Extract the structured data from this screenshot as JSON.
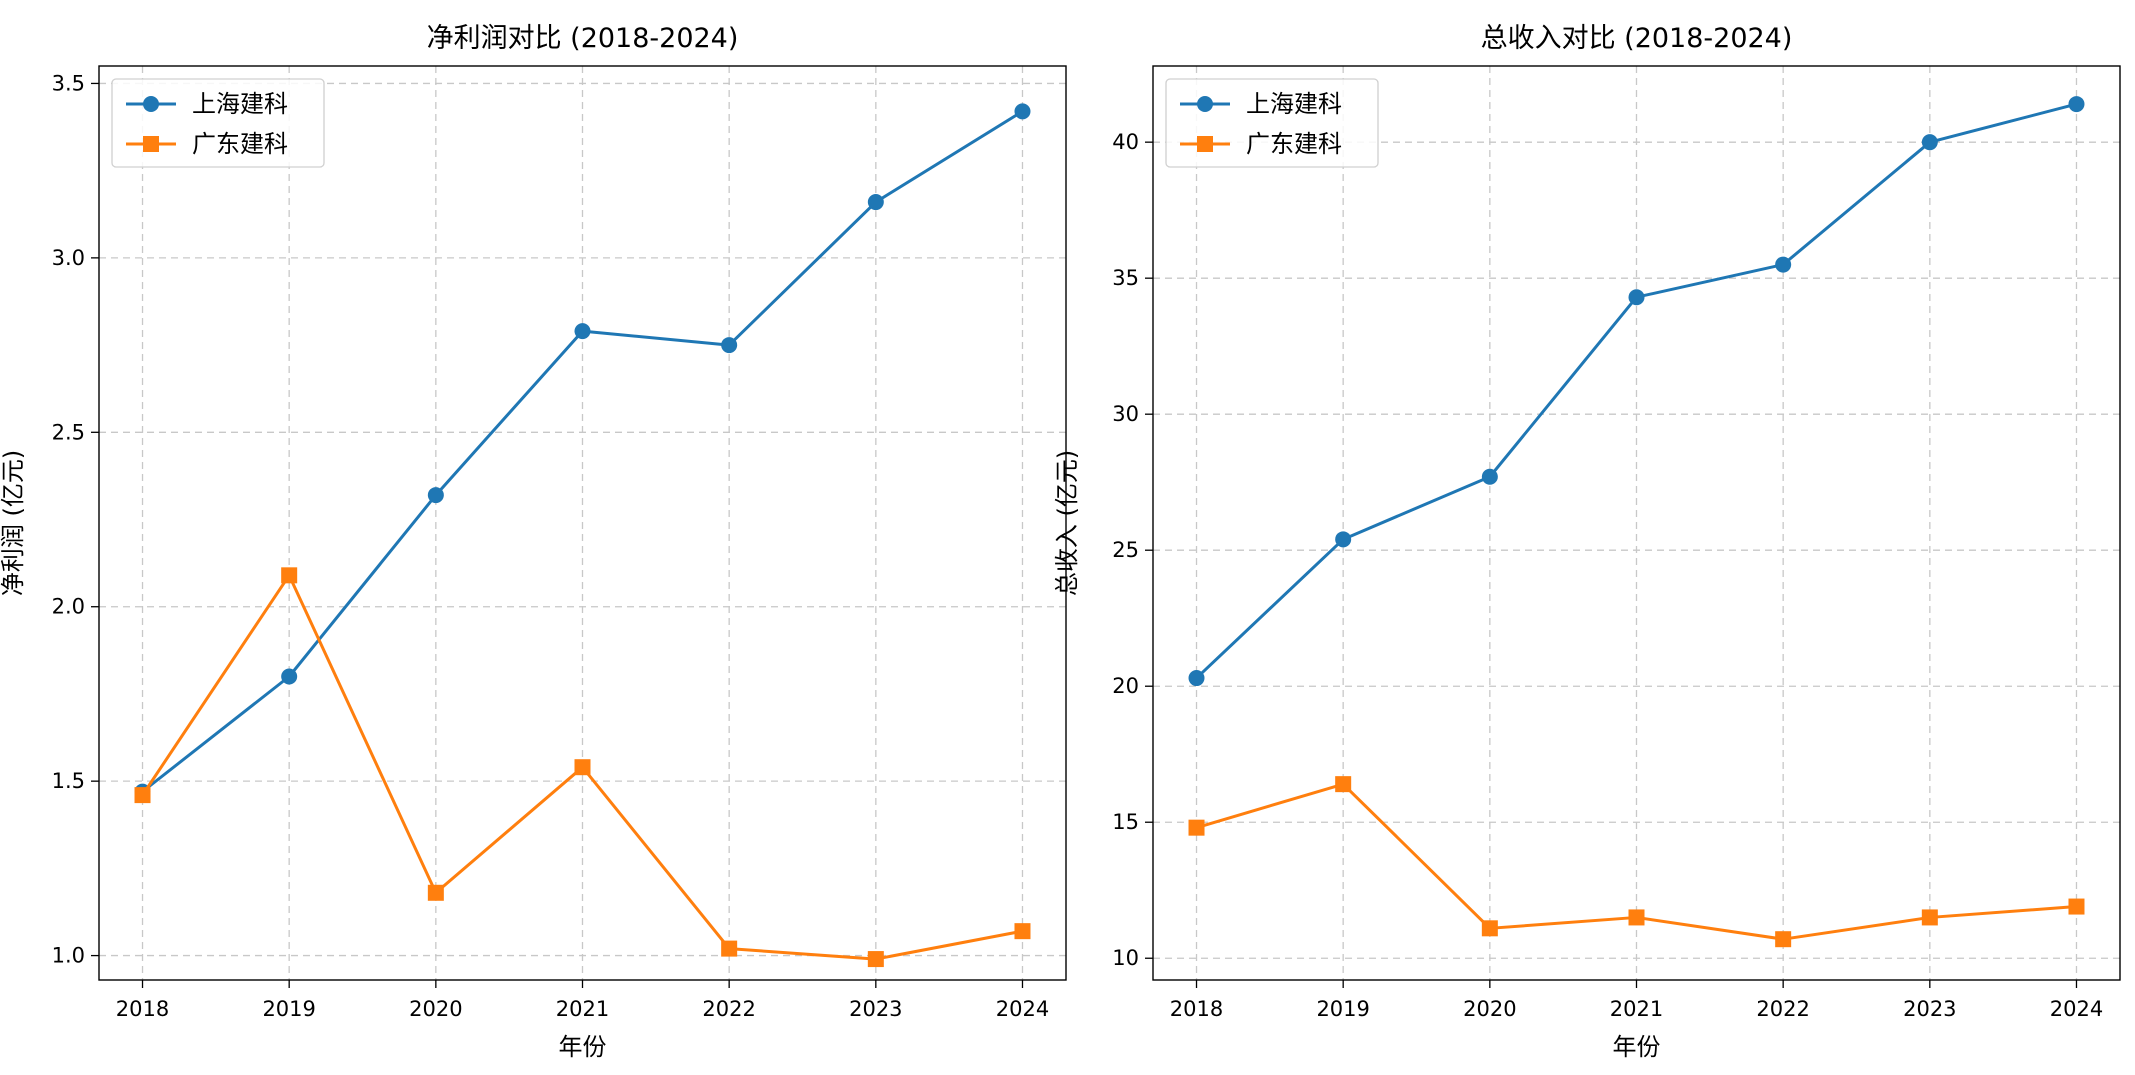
{
  "chart_data": [
    {
      "type": "line",
      "title": "净利润对比 (2018-2024)",
      "xlabel": "年份",
      "ylabel": "净利润 (亿元)",
      "x": [
        2018,
        2019,
        2020,
        2021,
        2022,
        2023,
        2024
      ],
      "ylim": [
        0.93,
        3.55
      ],
      "yticks": [
        1.0,
        1.5,
        2.0,
        2.5,
        3.0,
        3.5
      ],
      "ytick_labels": [
        "1.0",
        "1.5",
        "2.0",
        "2.5",
        "3.0",
        "3.5"
      ],
      "grid": true,
      "legend": "top-left",
      "series": [
        {
          "name": "上海建科",
          "color": "#1f77b4",
          "marker": "circle",
          "values": [
            1.47,
            1.8,
            2.32,
            2.79,
            2.75,
            3.16,
            3.42
          ]
        },
        {
          "name": "广东建科",
          "color": "#ff7f0e",
          "marker": "square",
          "values": [
            1.46,
            2.09,
            1.18,
            1.54,
            1.02,
            0.99,
            1.07
          ]
        }
      ]
    },
    {
      "type": "line",
      "title": "总收入对比 (2018-2024)",
      "xlabel": "年份",
      "ylabel": "总收入 (亿元)",
      "x": [
        2018,
        2019,
        2020,
        2021,
        2022,
        2023,
        2024
      ],
      "ylim": [
        9.2,
        42.8
      ],
      "yticks": [
        10,
        15,
        20,
        25,
        30,
        35,
        40
      ],
      "ytick_labels": [
        "10",
        "15",
        "20",
        "25",
        "30",
        "35",
        "40"
      ],
      "grid": true,
      "legend": "top-left",
      "series": [
        {
          "name": "上海建科",
          "color": "#1f77b4",
          "marker": "circle",
          "values": [
            20.3,
            25.4,
            27.7,
            34.3,
            35.5,
            40.0,
            41.4
          ]
        },
        {
          "name": "广东建科",
          "color": "#ff7f0e",
          "marker": "square",
          "values": [
            14.8,
            16.4,
            11.1,
            11.5,
            10.7,
            11.5,
            11.9
          ]
        }
      ]
    }
  ]
}
